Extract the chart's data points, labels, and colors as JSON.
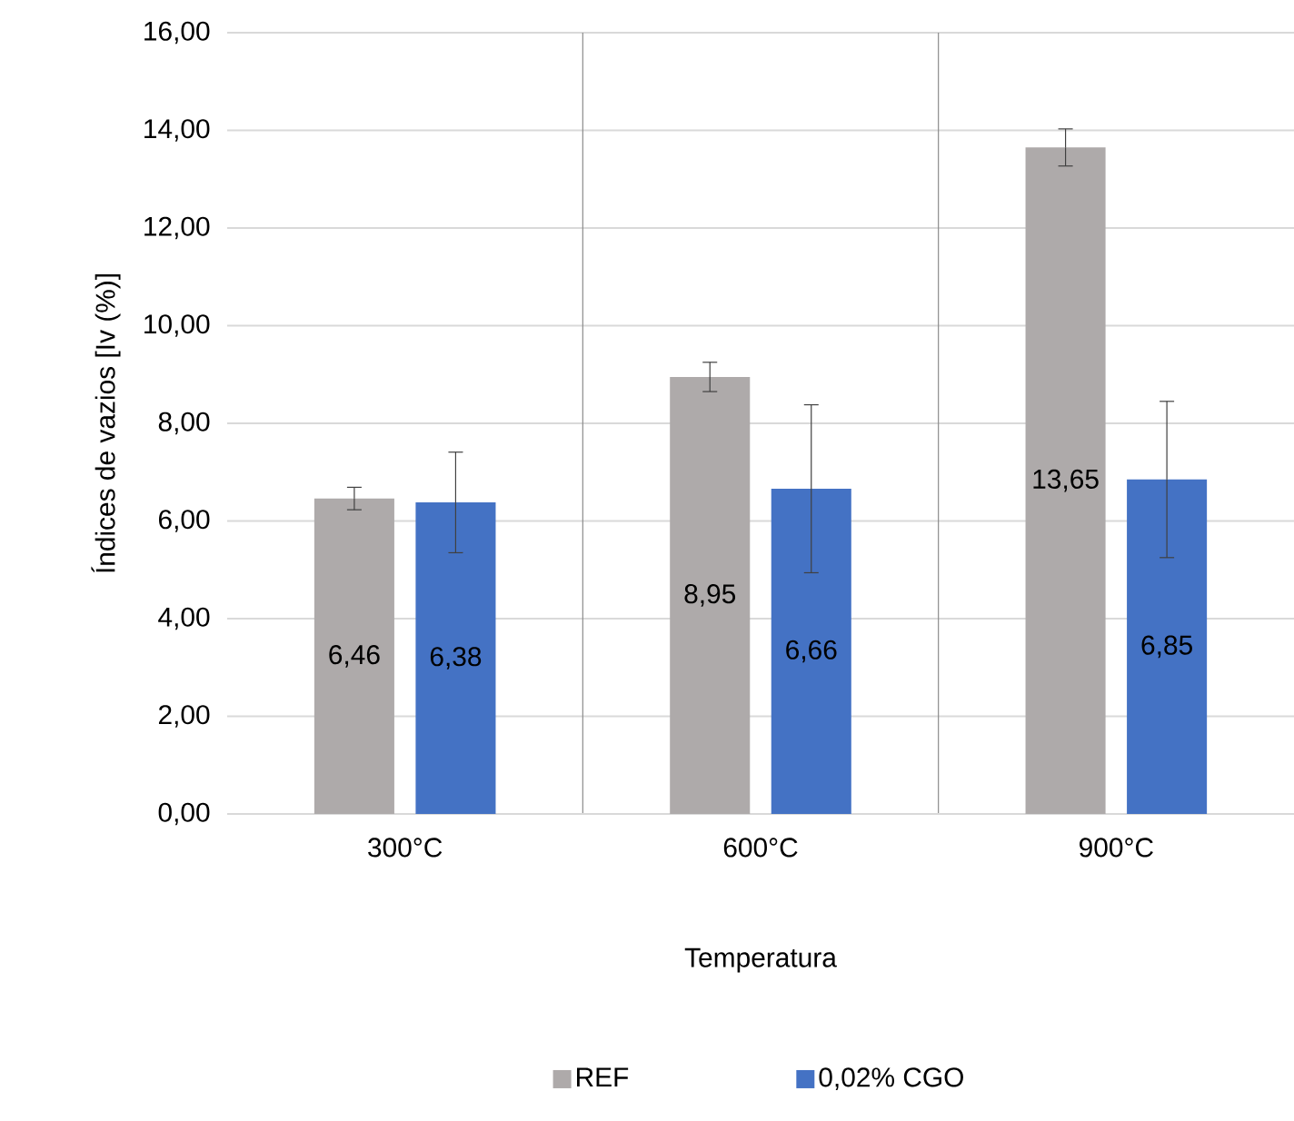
{
  "chart_data": {
    "type": "bar",
    "xlabel": "Temperatura",
    "ylabel": "Índices de vazios [Iv (%)]",
    "categories": [
      "300°C",
      "600°C",
      "900°C"
    ],
    "series": [
      {
        "name": "REF",
        "color": "#aeaaaa",
        "values": [
          6.46,
          8.95,
          13.65
        ],
        "errors": [
          0.23,
          0.3,
          0.38
        ],
        "value_labels": [
          "6,46",
          "8,95",
          "13,65"
        ]
      },
      {
        "name": "0,02% CGO",
        "color": "#4472c4",
        "values": [
          6.38,
          6.66,
          6.85
        ],
        "errors": [
          1.03,
          1.72,
          1.6
        ],
        "value_labels": [
          "6,38",
          "6,66",
          "6,85"
        ]
      }
    ],
    "ylim": [
      0,
      16
    ],
    "yticks": [
      {
        "value": 0,
        "label": "0,00"
      },
      {
        "value": 2,
        "label": "2,00"
      },
      {
        "value": 4,
        "label": "4,00"
      },
      {
        "value": 6,
        "label": "6,00"
      },
      {
        "value": 8,
        "label": "8,00"
      },
      {
        "value": 10,
        "label": "10,00"
      },
      {
        "value": 12,
        "label": "12,00"
      },
      {
        "value": 14,
        "label": "14,00"
      },
      {
        "value": 16,
        "label": "16,00"
      }
    ],
    "grid": true,
    "legend": "bottom"
  }
}
